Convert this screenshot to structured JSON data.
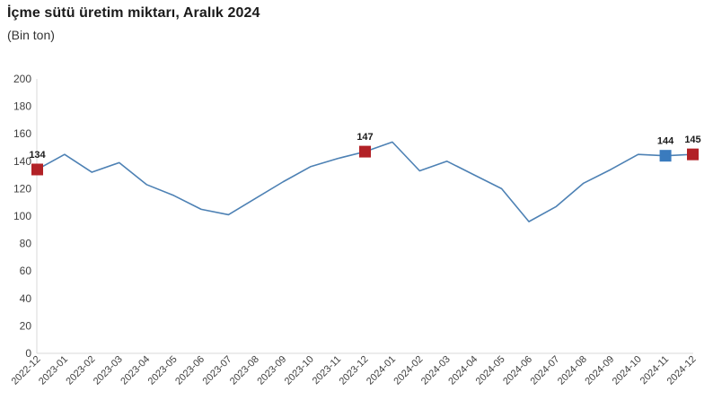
{
  "page": {
    "title": "İçme sütü üretim miktarı, Aralık 2024",
    "subtitle": "(Bin ton)"
  },
  "chart_data": {
    "type": "line",
    "title": "İçme sütü üretim miktarı, Aralık 2024",
    "subtitle": "(Bin ton)",
    "categories": [
      "2022-12",
      "2023-01",
      "2023-02",
      "2023-03",
      "2023-04",
      "2023-05",
      "2023-06",
      "2023-07",
      "2023-08",
      "2023-09",
      "2023-10",
      "2023-11",
      "2023-12",
      "2024-01",
      "2024-02",
      "2024-03",
      "2024-04",
      "2024-05",
      "2024-06",
      "2024-07",
      "2024-08",
      "2024-09",
      "2024-10",
      "2024-11",
      "2024-12"
    ],
    "values": [
      134,
      145,
      132,
      139,
      123,
      115,
      105,
      101,
      113,
      125,
      136,
      142,
      147,
      154,
      133,
      140,
      130,
      120,
      96,
      107,
      124,
      134,
      145,
      144,
      145
    ],
    "ylim": [
      0,
      200
    ],
    "ytick_step": 20,
    "grid": false,
    "legend": "none",
    "line_color": "#4d81b4",
    "axis_color": "#d9d9d9",
    "tick_label_color": "#404040",
    "point_label_color": "#1a1a1a",
    "marked_points": [
      {
        "index": 0,
        "category": "2022-12",
        "value": 134,
        "label": "134",
        "color": "#b22126"
      },
      {
        "index": 12,
        "category": "2023-12",
        "value": 147,
        "label": "147",
        "color": "#b22126"
      },
      {
        "index": 23,
        "category": "2024-11",
        "value": 144,
        "label": "144",
        "color": "#3a7bbe"
      },
      {
        "index": 24,
        "category": "2024-12",
        "value": 145,
        "label": "145",
        "color": "#b22126"
      }
    ]
  }
}
